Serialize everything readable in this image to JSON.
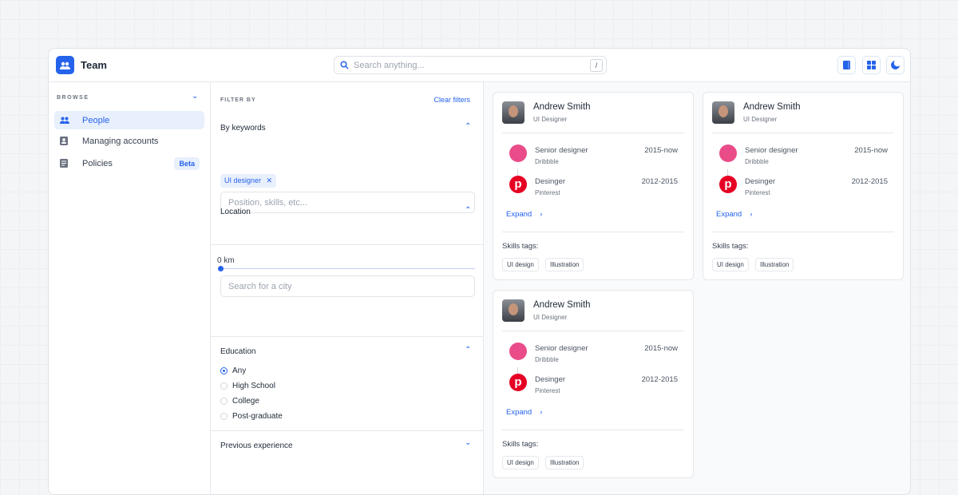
{
  "app": {
    "title": "Team",
    "search_placeholder": "Search anything...",
    "search_shortcut": "/",
    "accent": "#2563eb"
  },
  "header_buttons": [
    {
      "icon": "book-icon"
    },
    {
      "icon": "grid-icon"
    },
    {
      "icon": "moon-icon"
    }
  ],
  "sidebar": {
    "section": "BROWSE",
    "items": [
      {
        "label": "People",
        "icon": "people-icon",
        "active": true
      },
      {
        "label": "Managing accounts",
        "icon": "contact-icon"
      },
      {
        "label": "Policies",
        "icon": "document-icon",
        "badge": "Beta"
      }
    ]
  },
  "filters": {
    "title": "FILTER BY",
    "clear": "Clear filters",
    "keywords": {
      "label": "By keywords",
      "placeholder": "Position, skills, etc...",
      "chips": [
        "UI designer"
      ]
    },
    "location": {
      "label": "Location",
      "placeholder": "Search for a city",
      "distance": "0 km",
      "distance_value": 0
    },
    "education": {
      "label": "Education",
      "options": [
        "Any",
        "High School",
        "College",
        "Post-graduate"
      ],
      "selected": "Any"
    },
    "experience": {
      "label": "Previous experience"
    }
  },
  "cards": [
    {
      "name": "Andrew Smith",
      "role": "UI Designer",
      "jobs": [
        {
          "title": "Senior designer",
          "company": "Dribbble",
          "years": "2015-now"
        },
        {
          "title": "Desinger",
          "company": "Pinterest",
          "years": "2012-2015"
        }
      ],
      "expand": "Expand",
      "skills_label": "Skills tags:",
      "skills": [
        "UI design",
        "Illustration"
      ]
    },
    {
      "name": "Andrew Smith",
      "role": "UI Designer",
      "jobs": [
        {
          "title": "Senior designer",
          "company": "Dribbble",
          "years": "2015-now"
        },
        {
          "title": "Desinger",
          "company": "Pinterest",
          "years": "2012-2015"
        }
      ],
      "expand": "Expand",
      "skills_label": "Skills tags:",
      "skills": [
        "UI design",
        "Illustration"
      ]
    },
    {
      "name": "Andrew Smith",
      "role": "UI Designer",
      "jobs": [
        {
          "title": "Senior designer",
          "company": "Dribbble",
          "years": "2015-now"
        },
        {
          "title": "Desinger",
          "company": "Pinterest",
          "years": "2012-2015"
        }
      ],
      "expand": "Expand",
      "skills_label": "Skills tags:",
      "skills": [
        "UI design",
        "Illustration"
      ]
    }
  ]
}
